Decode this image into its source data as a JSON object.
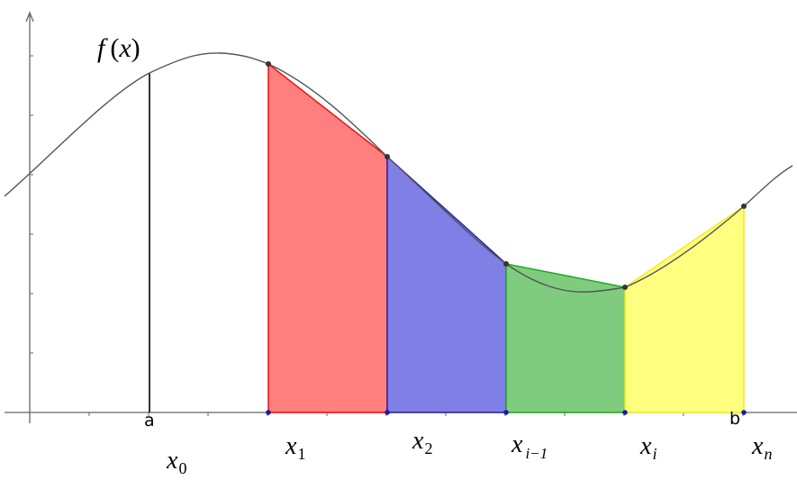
{
  "function_label": {
    "name": "f",
    "open_paren": "(",
    "arg": "x",
    "close_paren": ")"
  },
  "endpoints": {
    "a": "a",
    "b": "b"
  },
  "x_labels": [
    {
      "base": "x",
      "sub": "0"
    },
    {
      "base": "x",
      "sub": "1"
    },
    {
      "base": "x",
      "sub": "2"
    },
    {
      "base": "x",
      "sub": "i−1"
    },
    {
      "base": "x",
      "sub": "i"
    },
    {
      "base": "x",
      "sub": "n"
    }
  ],
  "colors": {
    "trapezoid_1_fill": "#ff7f7f",
    "trapezoid_1_edge": "#ee1111",
    "trapezoid_2_fill": "#7f7fe6",
    "trapezoid_2_edge": "#2222aa",
    "trapezoid_3_fill": "#7fcc7f",
    "trapezoid_3_edge": "#22aa22",
    "trapezoid_4_fill": "#ffff7f",
    "trapezoid_4_edge": "#eeee22",
    "curve": "#555555",
    "axis": "#666666",
    "point": "#333333",
    "axis_point": "#1a1aa0"
  }
}
